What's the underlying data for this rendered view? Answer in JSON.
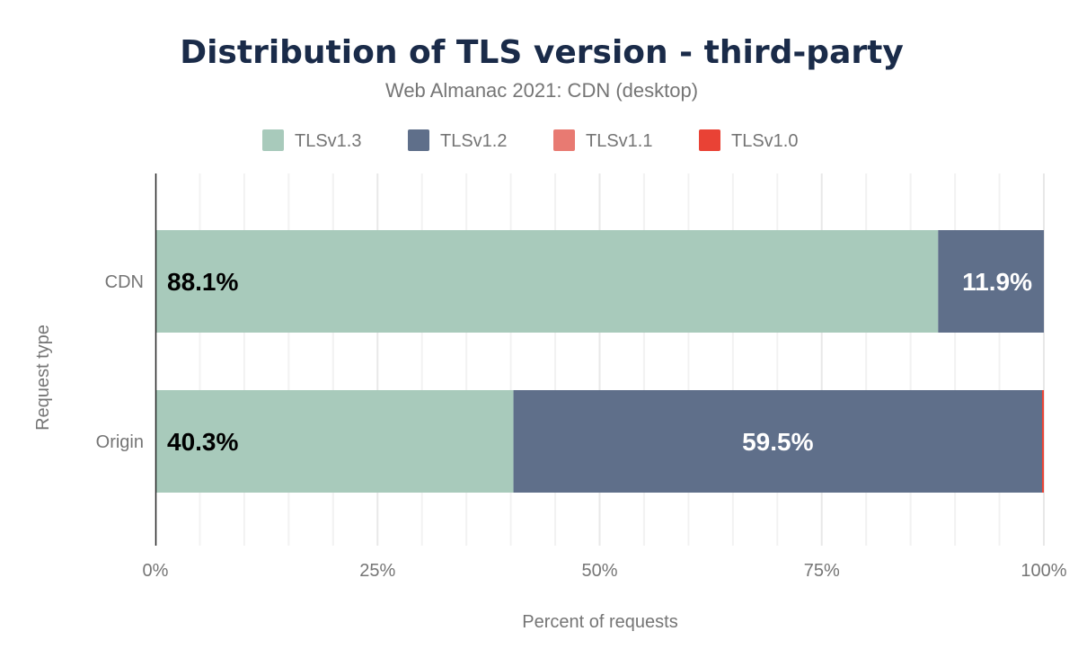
{
  "chart_data": {
    "type": "bar",
    "orientation": "horizontal",
    "stacked": true,
    "title": "Distribution of TLS version - third-party",
    "subtitle": "Web Almanac 2021: CDN (desktop)",
    "xlabel": "Percent of requests",
    "ylabel": "Request type",
    "categories": [
      "CDN",
      "Origin"
    ],
    "series": [
      {
        "name": "TLSv1.3",
        "color": "#a8cabb",
        "values": [
          88.1,
          40.3
        ],
        "labels": [
          "88.1%",
          "40.3%"
        ],
        "label_color": "#000000"
      },
      {
        "name": "TLSv1.2",
        "color": "#5f6f8a",
        "values": [
          11.9,
          59.5
        ],
        "labels": [
          "11.9%",
          "59.5%"
        ],
        "label_color": "#ffffff"
      },
      {
        "name": "TLSv1.1",
        "color": "#e87a72",
        "values": [
          0,
          0
        ],
        "labels": [
          "",
          ""
        ],
        "label_color": "#ffffff"
      },
      {
        "name": "TLSv1.0",
        "color": "#e94235",
        "values": [
          0,
          0.2
        ],
        "labels": [
          "",
          ""
        ],
        "label_color": "#ffffff"
      }
    ],
    "xlim": [
      0,
      100
    ],
    "xticks": [
      "0%",
      "25%",
      "50%",
      "75%",
      "100%"
    ],
    "grid": true,
    "legend_position": "top"
  }
}
